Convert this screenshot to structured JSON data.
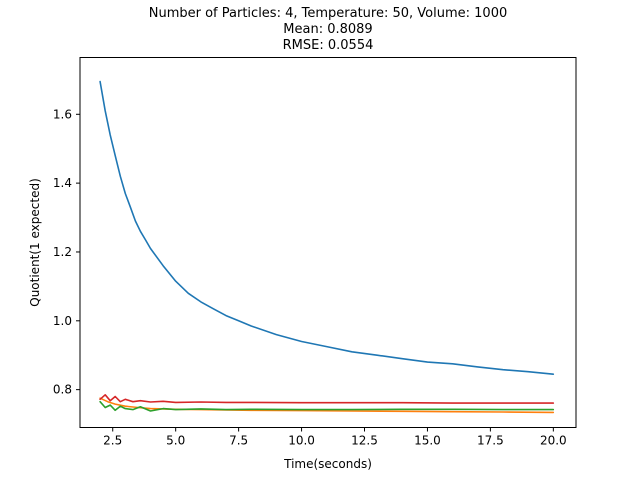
{
  "chart_data": {
    "type": "line",
    "title_lines": [
      "Number of Particles: 4, Temperature: 50, Volume: 1000",
      "Mean: 0.8089",
      "RMSE: 0.0554"
    ],
    "xlabel": "Time(seconds)",
    "ylabel": "Quotient(1 expected)",
    "xlim": [
      1.2,
      20.9
    ],
    "ylim": [
      0.69,
      1.765
    ],
    "xticks": [
      2.5,
      5.0,
      7.5,
      10.0,
      12.5,
      15.0,
      17.5,
      20.0
    ],
    "xtick_labels": [
      "2.5",
      "5.0",
      "7.5",
      "10.0",
      "12.5",
      "15.0",
      "17.5",
      "20.0"
    ],
    "yticks": [
      0.8,
      1.0,
      1.2,
      1.4,
      1.6
    ],
    "ytick_labels": [
      "0.8",
      "1.0",
      "1.2",
      "1.4",
      "1.6"
    ],
    "grid": false,
    "series": [
      {
        "color": "#1f77b4",
        "x": [
          2.0,
          2.2,
          2.4,
          2.6,
          2.8,
          3.0,
          3.2,
          3.4,
          3.6,
          3.8,
          4.0,
          4.5,
          5.0,
          5.5,
          6.0,
          6.5,
          7.0,
          7.5,
          8.0,
          9.0,
          10.0,
          11.0,
          12.0,
          13.0,
          14.0,
          15.0,
          16.0,
          17.0,
          18.0,
          19.0,
          20.0
        ],
        "y": [
          1.695,
          1.61,
          1.54,
          1.48,
          1.42,
          1.37,
          1.33,
          1.29,
          1.26,
          1.235,
          1.21,
          1.16,
          1.115,
          1.08,
          1.055,
          1.035,
          1.015,
          1.0,
          0.985,
          0.96,
          0.94,
          0.925,
          0.91,
          0.9,
          0.89,
          0.88,
          0.875,
          0.866,
          0.858,
          0.852,
          0.845
        ]
      },
      {
        "color": "#ff7f0e",
        "x": [
          2.0,
          2.3,
          2.6,
          3.0,
          3.5,
          4.0,
          5.0,
          6.0,
          7.0,
          8.0,
          10.0,
          12.0,
          14.0,
          16.0,
          18.0,
          20.0
        ],
        "y": [
          0.775,
          0.765,
          0.758,
          0.752,
          0.748,
          0.745,
          0.743,
          0.742,
          0.741,
          0.74,
          0.739,
          0.738,
          0.737,
          0.736,
          0.735,
          0.734
        ]
      },
      {
        "color": "#2ca02c",
        "x": [
          2.0,
          2.2,
          2.4,
          2.6,
          2.8,
          3.0,
          3.3,
          3.6,
          4.0,
          4.5,
          5.0,
          6.0,
          7.0,
          8.0,
          10.0,
          12.0,
          14.0,
          16.0,
          18.0,
          20.0
        ],
        "y": [
          0.765,
          0.748,
          0.755,
          0.74,
          0.752,
          0.745,
          0.742,
          0.75,
          0.738,
          0.745,
          0.742,
          0.744,
          0.742,
          0.743,
          0.742,
          0.742,
          0.743,
          0.743,
          0.742,
          0.742
        ]
      },
      {
        "color": "#d62728",
        "x": [
          2.0,
          2.2,
          2.4,
          2.6,
          2.8,
          3.0,
          3.3,
          3.6,
          4.0,
          4.5,
          5.0,
          6.0,
          7.0,
          8.0,
          10.0,
          12.0,
          14.0,
          16.0,
          18.0,
          20.0
        ],
        "y": [
          0.772,
          0.785,
          0.768,
          0.78,
          0.765,
          0.772,
          0.765,
          0.768,
          0.764,
          0.766,
          0.763,
          0.764,
          0.763,
          0.763,
          0.762,
          0.762,
          0.762,
          0.761,
          0.761,
          0.761
        ]
      }
    ]
  }
}
